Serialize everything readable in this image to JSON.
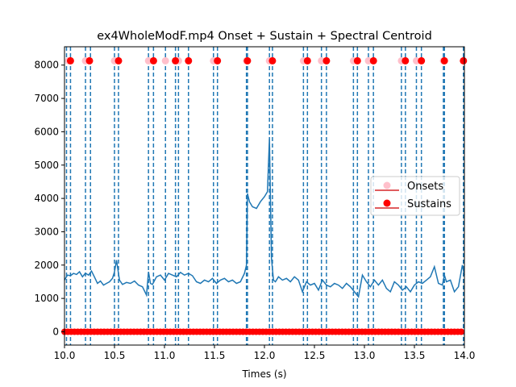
{
  "chart_data": {
    "type": "line",
    "title": "ex4WholeModF.mp4 Onset + Sustain + Spectral Centroid",
    "xlabel": "Times (s)",
    "ylabel": "",
    "xlim": [
      10.0,
      14.0
    ],
    "ylim": [
      -400,
      8550
    ],
    "xticks": [
      10.0,
      10.5,
      11.0,
      11.5,
      12.0,
      12.5,
      13.0,
      13.5,
      14.0
    ],
    "xtick_labels": [
      "10.0",
      "10.5",
      "11.0",
      "11.5",
      "12.0",
      "12.5",
      "13.0",
      "13.5",
      "14.0"
    ],
    "yticks": [
      0,
      1000,
      2000,
      3000,
      4000,
      5000,
      6000,
      7000,
      8000
    ],
    "ytick_labels": [
      "0",
      "1000",
      "2000",
      "3000",
      "4000",
      "5000",
      "6000",
      "7000",
      "8000"
    ],
    "legend_position": "center-right",
    "colors": {
      "centroid": "#1f77b4",
      "vlines": "#1f77b4",
      "onsets": "#ffc0cb",
      "sustains": "#ff0000",
      "legend_line": "#d62728"
    },
    "marker_y": 8130,
    "vlines_x": [
      10.02,
      10.06,
      10.21,
      10.26,
      10.5,
      10.54,
      10.84,
      10.89,
      11.01,
      11.11,
      11.14,
      11.24,
      11.49,
      11.53,
      11.82,
      11.83,
      12.05,
      12.08,
      12.39,
      12.43,
      12.57,
      12.62,
      12.89,
      12.93,
      13.04,
      13.09,
      13.37,
      13.41,
      13.52,
      13.57,
      13.79,
      13.8,
      13.99
    ],
    "series": [
      {
        "name": "Onsets",
        "kind": "scatter",
        "x": [
          10.04,
          10.21,
          10.5,
          10.84,
          11.01,
          11.14,
          11.49,
          11.82,
          12.05,
          12.39,
          12.57,
          12.89,
          13.04,
          13.37,
          13.52,
          13.79
        ]
      },
      {
        "name": "Sustains",
        "kind": "scatter",
        "x": [
          10.06,
          10.25,
          10.54,
          10.89,
          11.11,
          11.24,
          11.53,
          11.83,
          12.08,
          12.43,
          12.62,
          12.93,
          13.09,
          13.41,
          13.57,
          13.8,
          13.99
        ]
      },
      {
        "kind": "line",
        "x": [
          10.0,
          10.03,
          10.06,
          10.09,
          10.12,
          10.15,
          10.18,
          10.21,
          10.24,
          10.27,
          10.3,
          10.33,
          10.36,
          10.39,
          10.42,
          10.45,
          10.48,
          10.5,
          10.52,
          10.55,
          10.58,
          10.62,
          10.66,
          10.7,
          10.74,
          10.78,
          10.82,
          10.84,
          10.86,
          10.88,
          10.92,
          10.96,
          11.0,
          11.04,
          11.08,
          11.12,
          11.16,
          11.2,
          11.24,
          11.28,
          11.32,
          11.36,
          11.4,
          11.44,
          11.48,
          11.52,
          11.56,
          11.6,
          11.64,
          11.68,
          11.72,
          11.76,
          11.8,
          11.82,
          11.83,
          11.85,
          11.88,
          11.92,
          11.96,
          12.0,
          12.03,
          12.05,
          12.07,
          12.09,
          12.11,
          12.14,
          12.18,
          12.22,
          12.26,
          12.3,
          12.34,
          12.38,
          12.42,
          12.46,
          12.5,
          12.54,
          12.58,
          12.62,
          12.66,
          12.7,
          12.74,
          12.78,
          12.82,
          12.86,
          12.9,
          12.94,
          12.98,
          13.02,
          13.06,
          13.1,
          13.14,
          13.18,
          13.22,
          13.26,
          13.3,
          13.34,
          13.38,
          13.42,
          13.46,
          13.5,
          13.54,
          13.58,
          13.62,
          13.66,
          13.7,
          13.74,
          13.78,
          13.8,
          13.82,
          13.86,
          13.9,
          13.94,
          13.98,
          14.0
        ],
        "y": [
          1550,
          1700,
          1680,
          1750,
          1720,
          1800,
          1650,
          1760,
          1700,
          1820,
          1640,
          1450,
          1520,
          1400,
          1450,
          1500,
          1600,
          1800,
          2150,
          1550,
          1420,
          1480,
          1450,
          1520,
          1400,
          1350,
          1100,
          1800,
          1450,
          1420,
          1650,
          1700,
          1550,
          1750,
          1700,
          1650,
          1780,
          1700,
          1750,
          1680,
          1500,
          1450,
          1550,
          1500,
          1600,
          1450,
          1550,
          1600,
          1500,
          1550,
          1450,
          1500,
          1750,
          2000,
          4150,
          3900,
          3750,
          3700,
          3900,
          4050,
          4200,
          5800,
          2200,
          1550,
          1500,
          1650,
          1550,
          1600,
          1500,
          1650,
          1550,
          1200,
          1500,
          1400,
          1450,
          1250,
          1550,
          1400,
          1350,
          1450,
          1400,
          1300,
          1450,
          1350,
          1200,
          1050,
          1700,
          1500,
          1350,
          1550,
          1400,
          1550,
          1300,
          1200,
          1500,
          1400,
          1250,
          1350,
          1200,
          1400,
          1500,
          1450,
          1550,
          1650,
          1950,
          1450,
          1400,
          1700,
          1500,
          1550,
          1200,
          1350,
          2000,
          1700
        ]
      }
    ]
  }
}
